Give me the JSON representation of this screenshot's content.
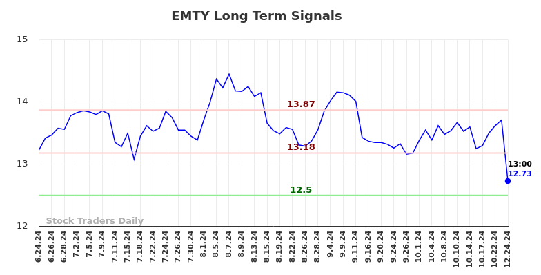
{
  "chart_data": {
    "type": "line",
    "title": "EMTY Long Term Signals",
    "categories": [
      "6.24.24",
      null,
      "6.26.24",
      null,
      "6.28.24",
      null,
      "7.2.24",
      null,
      "7.5.24",
      null,
      "7.9.24",
      null,
      "7.11.24",
      null,
      "7.15.24",
      null,
      "7.18.24",
      null,
      "7.22.24",
      null,
      "7.24.24",
      null,
      "7.26.24",
      null,
      "7.30.24",
      null,
      "8.1.24",
      null,
      "8.5.24",
      null,
      "8.7.24",
      null,
      "8.9.24",
      null,
      "8.13.24",
      null,
      "8.15.24",
      null,
      "8.19.24",
      null,
      "8.22.24",
      null,
      "8.26.24",
      null,
      "8.28.24",
      null,
      "9.4.24",
      null,
      "9.9.24",
      null,
      "9.11.24",
      null,
      "9.16.24",
      null,
      "9.20.24",
      null,
      "9.24.24",
      null,
      "9.26.24",
      null,
      "10.1.24",
      null,
      "10.4.24",
      null,
      "10.8.24",
      null,
      "10.10.24",
      null,
      "10.14.24",
      null,
      "10.17.24",
      null,
      "10.22.24",
      null,
      "12.24.24"
    ],
    "values": [
      13.23,
      13.42,
      13.47,
      13.58,
      13.56,
      13.78,
      13.83,
      13.86,
      13.84,
      13.8,
      13.86,
      13.81,
      13.35,
      13.28,
      13.5,
      13.08,
      13.45,
      13.62,
      13.53,
      13.58,
      13.85,
      13.75,
      13.55,
      13.55,
      13.45,
      13.39,
      13.71,
      14.0,
      14.37,
      14.23,
      14.45,
      14.18,
      14.17,
      14.25,
      14.09,
      14.15,
      13.66,
      13.54,
      13.49,
      13.59,
      13.56,
      13.31,
      13.29,
      13.37,
      13.55,
      13.85,
      14.02,
      14.16,
      14.15,
      14.11,
      14.01,
      13.43,
      13.37,
      13.35,
      13.35,
      13.32,
      13.26,
      13.33,
      13.16,
      13.18,
      13.38,
      13.55,
      13.39,
      13.62,
      13.48,
      13.54,
      13.67,
      13.53,
      13.6,
      13.25,
      13.3,
      13.5,
      13.62,
      13.71,
      12.73
    ],
    "color": "#0000ff",
    "ylim": [
      12,
      15
    ],
    "yticks": [
      12,
      13,
      14,
      15
    ],
    "grid": true,
    "hlines": [
      {
        "value": 13.87,
        "label": "13.87",
        "color": "#ffcccc",
        "label_color": "#800000"
      },
      {
        "value": 13.18,
        "label": "13.18",
        "color": "#ffcccc",
        "label_color": "#800000"
      },
      {
        "value": 12.5,
        "label": "12.5",
        "color": "#90ee90",
        "label_color": "#006400"
      }
    ],
    "last_point": {
      "time_label": "13:00",
      "value_label": "12.73"
    },
    "watermark": "Stock Traders Daily"
  }
}
